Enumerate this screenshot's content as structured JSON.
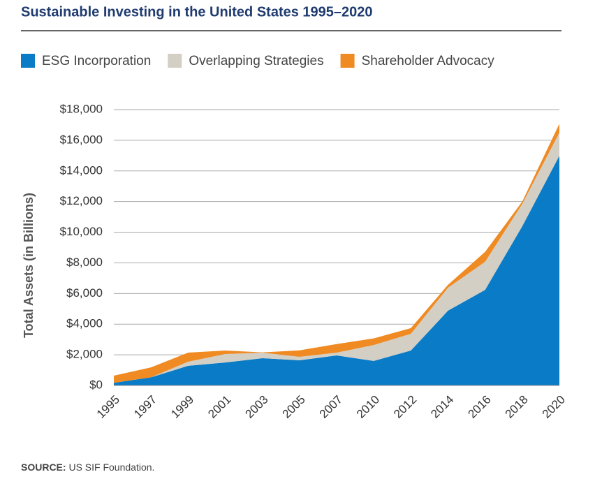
{
  "chart_data": {
    "type": "stacked_area",
    "title": "Sustainable Investing in the United States 1995–2020",
    "y_label": "Total Assets (in Billions)",
    "source_label": "SOURCE:",
    "source_text": "US SIF Foundation.",
    "categories": [
      "1995",
      "1997",
      "1999",
      "2001",
      "2003",
      "2005",
      "2007",
      "2010",
      "2012",
      "2014",
      "2016",
      "2018",
      "2020"
    ],
    "series": [
      {
        "name": "ESG Incorporation",
        "color": "#0a7bc6",
        "values": [
          170,
          530,
          1280,
          1500,
          1780,
          1640,
          1960,
          1600,
          2280,
          4880,
          6240,
          10390,
          14990
        ]
      },
      {
        "name": "Overlapping Strategies",
        "color": "#d3cfc5",
        "values": [
          0,
          0,
          270,
          550,
          360,
          230,
          180,
          1040,
          1090,
          1500,
          1830,
          1460,
          1510
        ]
      },
      {
        "name": "Shareholder Advocacy",
        "color": "#f08a22",
        "values": [
          470,
          650,
          590,
          230,
          20,
          420,
          560,
          430,
          370,
          190,
          650,
          150,
          580
        ]
      }
    ],
    "ylim": [
      0,
      18000
    ],
    "yticks": [
      {
        "value": 0,
        "label": "$0"
      },
      {
        "value": 2000,
        "label": "$2,000"
      },
      {
        "value": 4000,
        "label": "$4,000"
      },
      {
        "value": 6000,
        "label": "$6,000"
      },
      {
        "value": 8000,
        "label": "$8,000"
      },
      {
        "value": 10000,
        "label": "$10,000"
      },
      {
        "value": 12000,
        "label": "$12,000"
      },
      {
        "value": 14000,
        "label": "$14,000"
      },
      {
        "value": 16000,
        "label": "$16,000"
      },
      {
        "value": 18000,
        "label": "$18,000"
      }
    ],
    "grid": true
  }
}
